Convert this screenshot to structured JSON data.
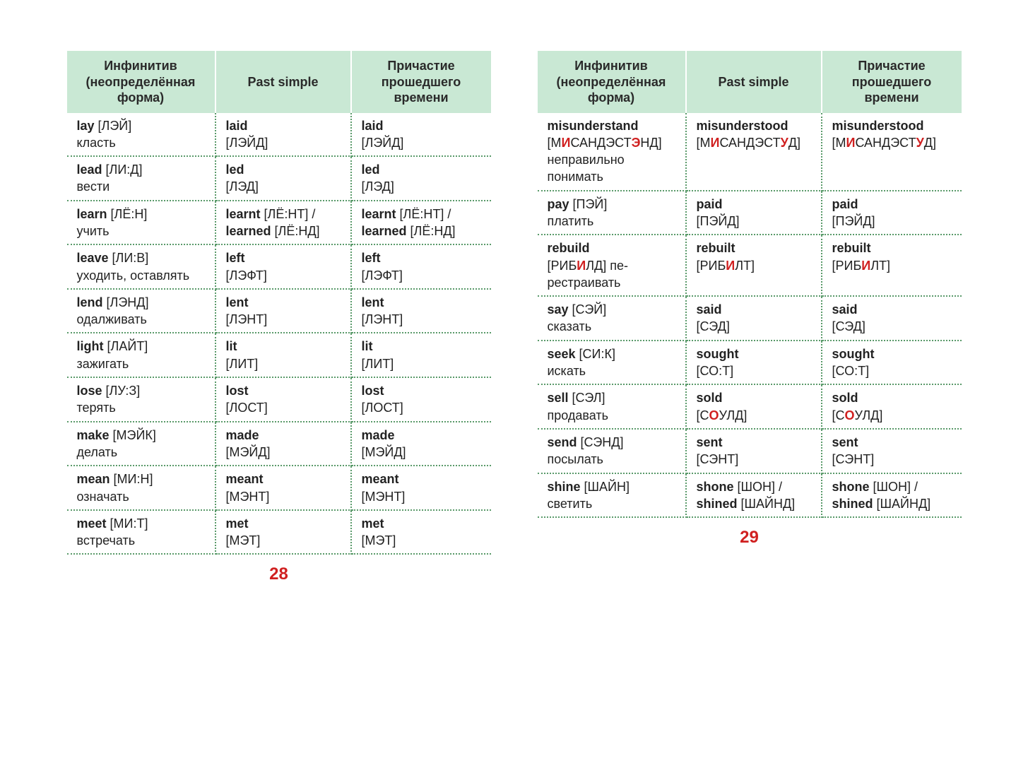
{
  "colors": {
    "header_bg": "#c9e8d4",
    "border": "#5a9a6a",
    "highlight": "#d02020",
    "text": "#222222",
    "page_bg": "#ffffff"
  },
  "headers": {
    "col1": "Инфинитив (неопреде­лённая форма)",
    "col2": "Past simple",
    "col3": "Причастие прошедшего времени"
  },
  "left": {
    "page_number": "28",
    "rows": [
      {
        "c1": "<b>lay</b> [ЛЭЙ]<br>класть",
        "c2": "<b>laid</b><br>[ЛЭЙД]",
        "c3": "<b>laid</b><br>[ЛЭЙД]"
      },
      {
        "c1": "<b>lead</b> [ЛИ:Д]<br>вести",
        "c2": "<b>led</b><br>[ЛЭД]",
        "c3": "<b>led</b><br>[ЛЭД]"
      },
      {
        "c1": "<b>learn</b> [ЛЁ:Н]<br>учить",
        "c2": "<b>learnt</b> [ЛЁ:НТ] / <b>learned</b> [ЛЁ:НД]",
        "c3": "<b>learnt</b> [ЛЁ:НТ] / <b>learned</b> [ЛЁ:НД]"
      },
      {
        "c1": "<b>leave</b> [ЛИ:В]<br>уходить, оставлять",
        "c2": "<b>left</b><br>[ЛЭФТ]",
        "c3": "<b>left</b><br>[ЛЭФТ]"
      },
      {
        "c1": "<b>lend</b> [ЛЭНД]<br>одалживать",
        "c2": "<b>lent</b><br>[ЛЭНТ]",
        "c3": "<b>lent</b><br>[ЛЭНТ]"
      },
      {
        "c1": "<b>light</b> [ЛАЙТ]<br>зажигать",
        "c2": "<b>lit</b><br>[ЛИТ]",
        "c3": "<b>lit</b><br>[ЛИТ]"
      },
      {
        "c1": "<b>lose</b> [ЛУ:З]<br>терять",
        "c2": "<b>lost</b><br>[ЛОСТ]",
        "c3": "<b>lost</b><br>[ЛОСТ]"
      },
      {
        "c1": "<b>make</b> [МЭЙК]<br>делать",
        "c2": "<b>made</b><br>[МЭЙД]",
        "c3": "<b>made</b><br>[МЭЙД]"
      },
      {
        "c1": "<b>mean</b> [МИ:Н]<br>означать",
        "c2": "<b>meant</b><br>[МЭНТ]",
        "c3": "<b>meant</b><br>[МЭНТ]"
      },
      {
        "c1": "<b>meet</b> [МИ:Т]<br>встречать",
        "c2": "<b>met</b><br>[МЭТ]",
        "c3": "<b>met</b><br>[МЭТ]"
      }
    ]
  },
  "right": {
    "page_number": "29",
    "rows": [
      {
        "c1": "<b>misunder­stand</b><br>[М<span class='hl'>И</span>САНДЭ­СТ<span class='hl'>Э</span>НД]<br>неправильно понимать",
        "c2": "<b>misunder­stood</b><br>[М<span class='hl'>И</span>САНДЭ­СТ<span class='hl'>У</span>Д]",
        "c3": "<b>misunder­stood</b><br>[М<span class='hl'>И</span>САНДЭ­СТ<span class='hl'>У</span>Д]"
      },
      {
        "c1": "<b>pay</b> [ПЭЙ]<br>платить",
        "c2": "<b>paid</b><br>[ПЭЙД]",
        "c3": "<b>paid</b><br>[ПЭЙД]"
      },
      {
        "c1": "<b>rebuild</b><br>[РИБ<span class='hl'>И</span>ЛД] пе­рестраивать",
        "c2": "<b>rebuilt</b><br>[РИБ<span class='hl'>И</span>ЛТ]",
        "c3": "<b>rebuilt</b><br>[РИБ<span class='hl'>И</span>ЛТ]"
      },
      {
        "c1": "<b>say</b> [СЭЙ]<br>сказать",
        "c2": "<b>said</b><br>[СЭД]",
        "c3": "<b>said</b><br>[СЭД]"
      },
      {
        "c1": "<b>seek</b> [СИ:К]<br>искать",
        "c2": "<b>sought</b><br>[СО:Т]",
        "c3": "<b>sought</b><br>[СО:Т]"
      },
      {
        "c1": "<b>sell</b> [СЭЛ]<br>продавать",
        "c2": "<b>sold</b><br>[С<span class='hl'>О</span>УЛД]",
        "c3": "<b>sold</b><br>[С<span class='hl'>О</span>УЛД]"
      },
      {
        "c1": "<b>send</b> [СЭНД]<br>посылать",
        "c2": "<b>sent</b><br>[СЭНТ]",
        "c3": "<b>sent</b><br>[СЭНТ]"
      },
      {
        "c1": "<b>shine</b> [ШАЙН]<br>светить",
        "c2": "<b>shone</b> [ШОН] / <b>shined</b> [ШАЙНД]",
        "c3": "<b>shone</b> [ШОН] / <b>shined</b> [ШАЙНД]"
      }
    ]
  }
}
